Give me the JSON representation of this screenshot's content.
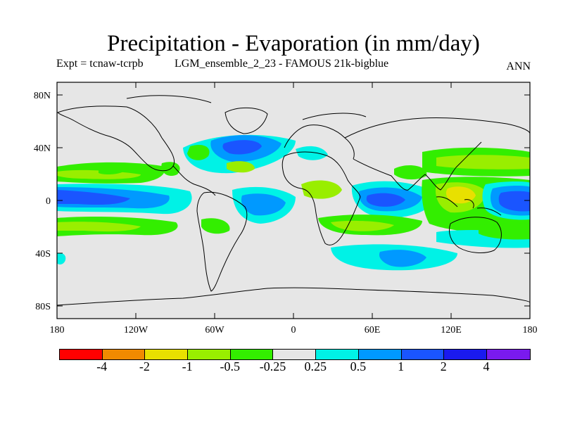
{
  "title": "Precipitation - Evaporation (in mm/day)",
  "subtitle_left": "Expt = tcnaw-tcrpb",
  "subtitle_right": "LGM_ensemble_2_23 - FAMOUS 21k-bigblue",
  "season": "ANN",
  "axes": {
    "lat_labels": [
      "80N",
      "40N",
      "0",
      "40S",
      "80S"
    ],
    "lon_labels": [
      "180",
      "120W",
      "60W",
      "0",
      "60E",
      "120E",
      "180"
    ]
  },
  "colorbar": {
    "colors": [
      "#ff0000",
      "#f08a00",
      "#e8e000",
      "#99ee00",
      "#33ee00",
      "#e6e6e6",
      "#00f2e6",
      "#0099ff",
      "#1a55ff",
      "#1a1aee",
      "#7a1aee"
    ],
    "labels": [
      "-4",
      "-2",
      "-1",
      "-0.5",
      "-0.25",
      "0.25",
      "0.5",
      "1",
      "2",
      "4"
    ]
  },
  "palette": {
    "neutral": "#e6e6e6",
    "yellow": "#e8e000",
    "lightgreen": "#99ee00",
    "green": "#33ee00",
    "cyan": "#00f2e6",
    "sky": "#0099ff",
    "blue": "#1a55ff"
  }
}
